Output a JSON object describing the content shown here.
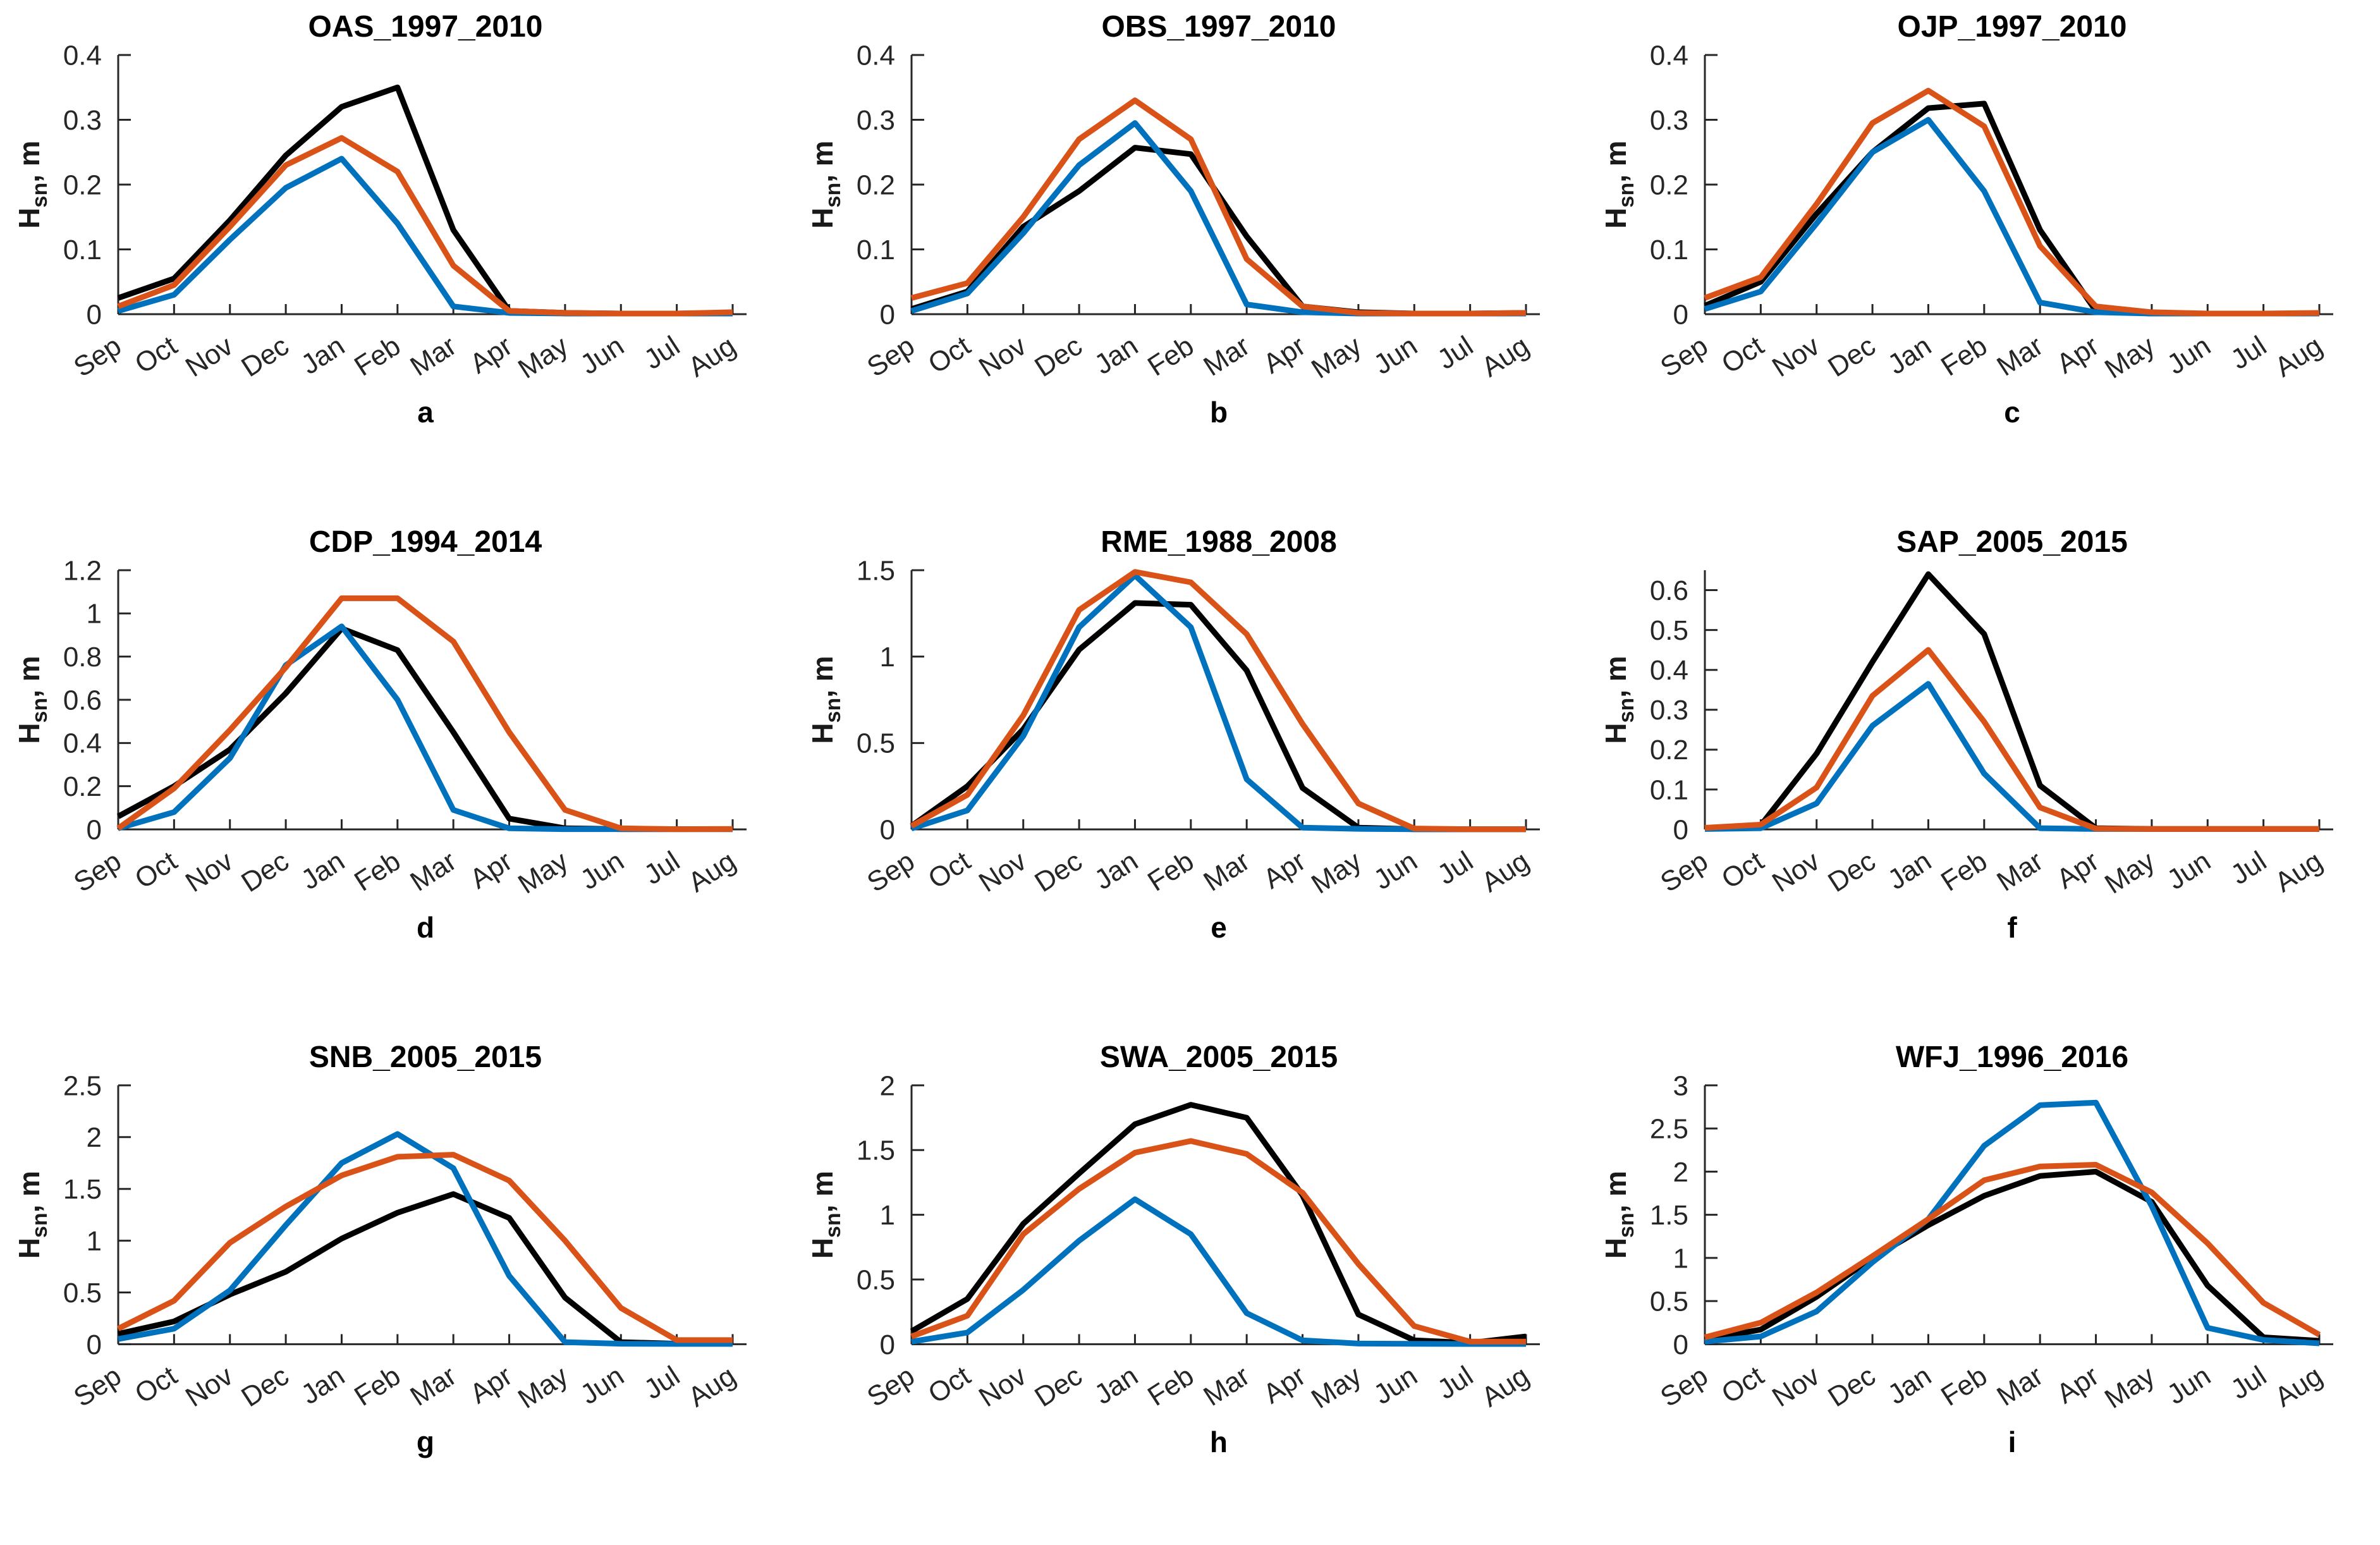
{
  "figure": {
    "background": "#ffffff"
  },
  "axis_label": {
    "main": "H",
    "sub": "sn",
    "rest": ", m"
  },
  "chart_data": {
    "type": "line",
    "grid": false,
    "legend": "none",
    "ylabel": "H_sn, m",
    "x_categories": [
      "Sep",
      "Oct",
      "Nov",
      "Dec",
      "Jan",
      "Feb",
      "Mar",
      "Apr",
      "May",
      "Jun",
      "Jul",
      "Aug"
    ],
    "series_colors": {
      "black": "#000000",
      "blue": "#0072BD",
      "orange": "#D95319"
    },
    "charts": [
      {
        "letter": "a",
        "title": "OAS_1997_2010",
        "ylim": [
          0,
          0.4
        ],
        "yticks": [
          0,
          0.1,
          0.2,
          0.3,
          0.4
        ],
        "yticklabels": [
          "0",
          "0.1",
          "0.2",
          "0.3",
          "0.4"
        ],
        "series": [
          {
            "name": "black",
            "color": "#000000",
            "values": [
              0.025,
              0.055,
              0.145,
              0.245,
              0.32,
              0.35,
              0.13,
              0.005,
              0.002,
              0.001,
              0.001,
              0.002
            ]
          },
          {
            "name": "blue",
            "color": "#0072BD",
            "values": [
              0.005,
              0.03,
              0.115,
              0.195,
              0.24,
              0.14,
              0.012,
              0.002,
              0.001,
              0.001,
              0.001,
              0.001
            ]
          },
          {
            "name": "orange",
            "color": "#D95319",
            "values": [
              0.012,
              0.045,
              0.135,
              0.23,
              0.272,
              0.22,
              0.075,
              0.005,
              0.002,
              0.001,
              0.001,
              0.003
            ]
          }
        ]
      },
      {
        "letter": "b",
        "title": "OBS_1997_2010",
        "ylim": [
          0,
          0.4
        ],
        "yticks": [
          0,
          0.1,
          0.2,
          0.3,
          0.4
        ],
        "yticklabels": [
          "0",
          "0.1",
          "0.2",
          "0.3",
          "0.4"
        ],
        "series": [
          {
            "name": "black",
            "color": "#000000",
            "values": [
              0.008,
              0.035,
              0.135,
              0.19,
              0.257,
              0.247,
              0.12,
              0.012,
              0.003,
              0.001,
              0.001,
              0.002
            ]
          },
          {
            "name": "blue",
            "color": "#0072BD",
            "values": [
              0.005,
              0.032,
              0.125,
              0.23,
              0.295,
              0.19,
              0.015,
              0.003,
              0.001,
              0.001,
              0.001,
              0.001
            ]
          },
          {
            "name": "orange",
            "color": "#D95319",
            "values": [
              0.025,
              0.048,
              0.15,
              0.27,
              0.33,
              0.27,
              0.085,
              0.012,
              0.002,
              0.001,
              0.001,
              0.002
            ]
          }
        ]
      },
      {
        "letter": "c",
        "title": "OJP_1997_2010",
        "ylim": [
          0,
          0.4
        ],
        "yticks": [
          0,
          0.1,
          0.2,
          0.3,
          0.4
        ],
        "yticklabels": [
          "0",
          "0.1",
          "0.2",
          "0.3",
          "0.4"
        ],
        "series": [
          {
            "name": "black",
            "color": "#000000",
            "values": [
              0.013,
              0.05,
              0.155,
              0.25,
              0.318,
              0.325,
              0.13,
              0.005,
              0.001,
              0.001,
              0.001,
              0.001
            ]
          },
          {
            "name": "blue",
            "color": "#0072BD",
            "values": [
              0.008,
              0.035,
              0.14,
              0.25,
              0.3,
              0.19,
              0.018,
              0.003,
              0.001,
              0.001,
              0.001,
              0.001
            ]
          },
          {
            "name": "orange",
            "color": "#D95319",
            "values": [
              0.025,
              0.057,
              0.17,
              0.295,
              0.345,
              0.29,
              0.105,
              0.012,
              0.003,
              0.001,
              0.001,
              0.002
            ]
          }
        ]
      },
      {
        "letter": "d",
        "title": "CDP_1994_2014",
        "ylim": [
          0,
          1.2
        ],
        "yticks": [
          0,
          0.2,
          0.4,
          0.6,
          0.8,
          1,
          1.2
        ],
        "yticklabels": [
          "0",
          "0.2",
          "0.4",
          "0.6",
          "0.8",
          "1",
          "1.2"
        ],
        "series": [
          {
            "name": "black",
            "color": "#000000",
            "values": [
              0.06,
              0.2,
              0.37,
              0.63,
              0.93,
              0.83,
              0.45,
              0.05,
              0.005,
              0.001,
              0.001,
              0.001
            ]
          },
          {
            "name": "blue",
            "color": "#0072BD",
            "values": [
              0.005,
              0.08,
              0.33,
              0.76,
              0.94,
              0.6,
              0.09,
              0.005,
              0.001,
              0.001,
              0.001,
              0.001
            ]
          },
          {
            "name": "orange",
            "color": "#D95319",
            "values": [
              0.005,
              0.19,
              0.46,
              0.75,
              1.07,
              1.07,
              0.87,
              0.45,
              0.09,
              0.005,
              0.001,
              0.002
            ]
          }
        ]
      },
      {
        "letter": "e",
        "title": "RME_1988_2008",
        "ylim": [
          0,
          1.5
        ],
        "yticks": [
          0,
          0.5,
          1,
          1.5
        ],
        "yticklabels": [
          "0",
          "0.5",
          "1",
          "1.5"
        ],
        "series": [
          {
            "name": "black",
            "color": "#000000",
            "values": [
              0.02,
              0.25,
              0.58,
              1.04,
              1.31,
              1.3,
              0.92,
              0.24,
              0.01,
              0.001,
              0.001,
              0.001
            ]
          },
          {
            "name": "blue",
            "color": "#0072BD",
            "values": [
              0.005,
              0.11,
              0.54,
              1.17,
              1.47,
              1.17,
              0.29,
              0.01,
              0.003,
              0.001,
              0.001,
              0.001
            ]
          },
          {
            "name": "orange",
            "color": "#D95319",
            "values": [
              0.02,
              0.2,
              0.66,
              1.27,
              1.49,
              1.43,
              1.13,
              0.61,
              0.15,
              0.005,
              0.001,
              0.001
            ]
          }
        ]
      },
      {
        "letter": "f",
        "title": "SAP_2005_2015",
        "ylim": [
          0,
          0.65
        ],
        "yticks": [
          0,
          0.1,
          0.2,
          0.3,
          0.4,
          0.5,
          0.6
        ],
        "yticklabels": [
          "0",
          "0.1",
          "0.2",
          "0.3",
          "0.4",
          "0.5",
          "0.6"
        ],
        "series": [
          {
            "name": "black",
            "color": "#000000",
            "values": [
              0.002,
              0.01,
              0.19,
              0.42,
              0.64,
              0.49,
              0.11,
              0.003,
              0.001,
              0.001,
              0.001,
              0.001
            ]
          },
          {
            "name": "blue",
            "color": "#0072BD",
            "values": [
              0.001,
              0.003,
              0.065,
              0.26,
              0.365,
              0.14,
              0.003,
              0.001,
              0.001,
              0.001,
              0.001,
              0.001
            ]
          },
          {
            "name": "orange",
            "color": "#D95319",
            "values": [
              0.004,
              0.012,
              0.105,
              0.335,
              0.45,
              0.27,
              0.055,
              0.002,
              0.001,
              0.001,
              0.001,
              0.001
            ]
          }
        ]
      },
      {
        "letter": "g",
        "title": "SNB_2005_2015",
        "ylim": [
          0,
          2.5
        ],
        "yticks": [
          0,
          0.5,
          1,
          1.5,
          2,
          2.5
        ],
        "yticklabels": [
          "0",
          "0.5",
          "1",
          "1.5",
          "2",
          "2.5"
        ],
        "series": [
          {
            "name": "black",
            "color": "#000000",
            "values": [
              0.1,
              0.22,
              0.48,
              0.7,
              1.02,
              1.27,
              1.45,
              1.22,
              0.45,
              0.02,
              0.005,
              0.02
            ]
          },
          {
            "name": "blue",
            "color": "#0072BD",
            "values": [
              0.05,
              0.15,
              0.52,
              1.15,
              1.75,
              2.03,
              1.7,
              0.66,
              0.02,
              0.005,
              0.003,
              0.003
            ]
          },
          {
            "name": "orange",
            "color": "#D95319",
            "values": [
              0.15,
              0.42,
              0.98,
              1.33,
              1.63,
              1.81,
              1.83,
              1.58,
              1.0,
              0.35,
              0.04,
              0.04
            ]
          }
        ]
      },
      {
        "letter": "h",
        "title": "SWA_2005_2015",
        "ylim": [
          0,
          2
        ],
        "yticks": [
          0,
          0.5,
          1,
          1.5,
          2
        ],
        "yticklabels": [
          "0",
          "0.5",
          "1",
          "1.5",
          "2"
        ],
        "series": [
          {
            "name": "black",
            "color": "#000000",
            "values": [
              0.1,
              0.35,
              0.93,
              1.32,
              1.7,
              1.85,
              1.75,
              1.15,
              0.23,
              0.03,
              0.01,
              0.06
            ]
          },
          {
            "name": "blue",
            "color": "#0072BD",
            "values": [
              0.02,
              0.09,
              0.42,
              0.8,
              1.12,
              0.85,
              0.24,
              0.03,
              0.005,
              0.003,
              0.002,
              0.002
            ]
          },
          {
            "name": "orange",
            "color": "#D95319",
            "values": [
              0.06,
              0.22,
              0.85,
              1.2,
              1.48,
              1.57,
              1.47,
              1.17,
              0.62,
              0.14,
              0.02,
              0.02
            ]
          }
        ]
      },
      {
        "letter": "i",
        "title": "WFJ_1996_2016",
        "ylim": [
          0,
          3
        ],
        "yticks": [
          0,
          0.5,
          1,
          1.5,
          2,
          2.5,
          3
        ],
        "yticklabels": [
          "0",
          "0.5",
          "1",
          "1.5",
          "2",
          "2.5",
          "3"
        ],
        "series": [
          {
            "name": "black",
            "color": "#000000",
            "values": [
              0.05,
              0.17,
              0.55,
              1.0,
              1.38,
              1.72,
              1.95,
              2.0,
              1.65,
              0.68,
              0.08,
              0.04
            ]
          },
          {
            "name": "blue",
            "color": "#0072BD",
            "values": [
              0.03,
              0.09,
              0.38,
              0.95,
              1.45,
              2.3,
              2.77,
              2.8,
              1.6,
              0.19,
              0.05,
              0.01
            ]
          },
          {
            "name": "orange",
            "color": "#D95319",
            "values": [
              0.08,
              0.25,
              0.6,
              1.02,
              1.45,
              1.9,
              2.06,
              2.08,
              1.76,
              1.17,
              0.48,
              0.11
            ]
          }
        ]
      }
    ]
  }
}
